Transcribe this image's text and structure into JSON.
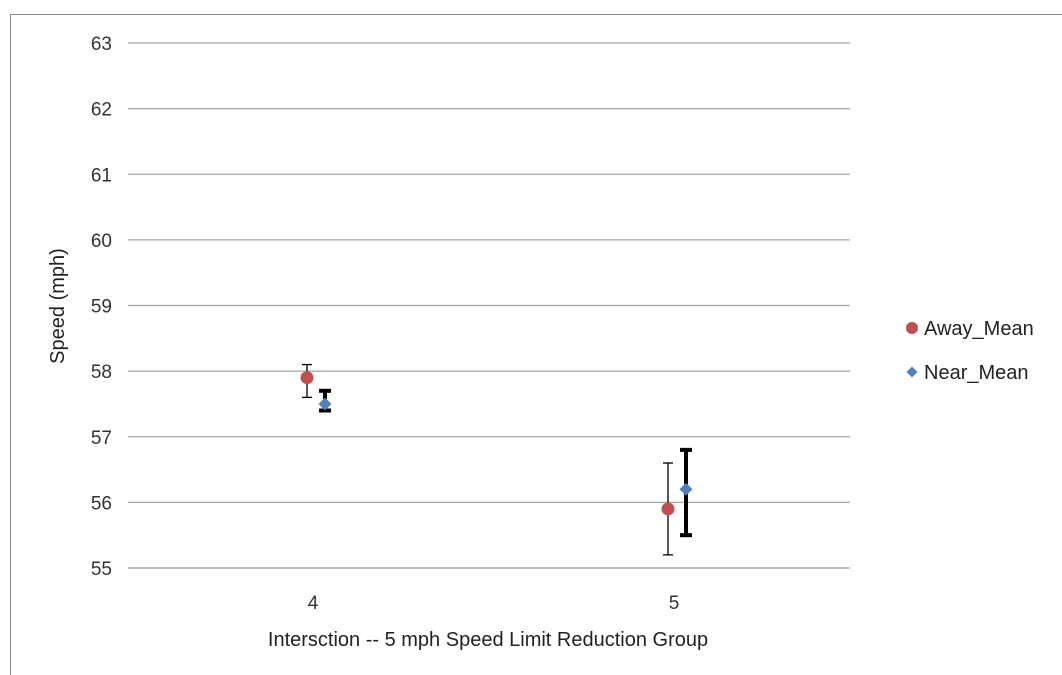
{
  "chart_data": {
    "type": "scatter",
    "xlabel": "Intersction -- 5 mph Speed Limit Reduction Group",
    "ylabel": "Speed (mph)",
    "ylim": [
      55,
      63
    ],
    "yticks": [
      "55",
      "56",
      "57",
      "58",
      "59",
      "60",
      "61",
      "62",
      "63"
    ],
    "categories": [
      "4",
      "5"
    ],
    "grid": true,
    "legend_position": "right",
    "series": [
      {
        "name": "Away_Mean",
        "marker": "circle",
        "color": "#c0504d",
        "values": [
          57.9,
          55.9
        ],
        "error_low": [
          57.6,
          55.2
        ],
        "error_high": [
          58.1,
          56.6
        ]
      },
      {
        "name": "Near_Mean",
        "marker": "diamond",
        "color": "#4f81bd",
        "values": [
          57.5,
          56.2
        ],
        "error_low": [
          57.4,
          55.5
        ],
        "error_high": [
          57.7,
          56.8
        ]
      }
    ]
  }
}
